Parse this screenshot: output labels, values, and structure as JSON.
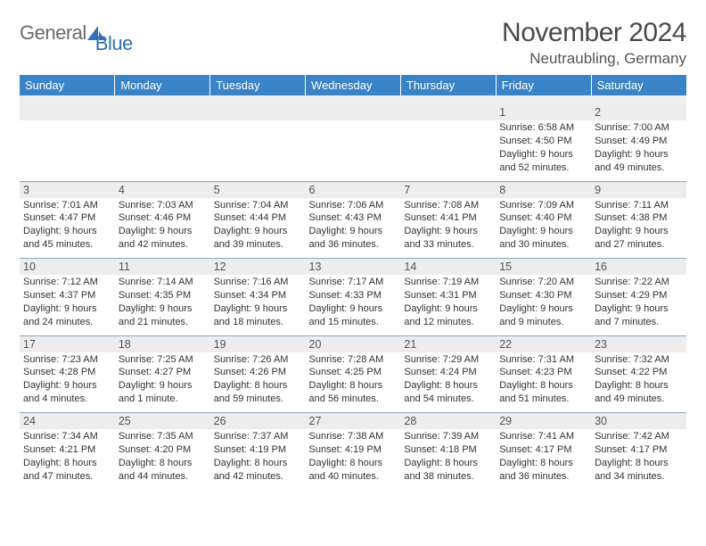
{
  "logo": {
    "general": "General",
    "blue": "Blue"
  },
  "title": {
    "month_year": "November 2024",
    "location": "Neutraubling, Germany"
  },
  "colors": {
    "header_bg": "#3b83c7",
    "header_text": "#ffffff",
    "daynum_bg": "#ededed",
    "border": "#8aa6c2",
    "logo_gray": "#6a6a6a",
    "logo_blue": "#2f6fb2"
  },
  "weekdays": [
    "Sunday",
    "Monday",
    "Tuesday",
    "Wednesday",
    "Thursday",
    "Friday",
    "Saturday"
  ],
  "weeks": [
    [
      null,
      null,
      null,
      null,
      null,
      {
        "n": "1",
        "sr": "6:58 AM",
        "ss": "4:50 PM",
        "dl": "9 hours and 52 minutes."
      },
      {
        "n": "2",
        "sr": "7:00 AM",
        "ss": "4:49 PM",
        "dl": "9 hours and 49 minutes."
      }
    ],
    [
      {
        "n": "3",
        "sr": "7:01 AM",
        "ss": "4:47 PM",
        "dl": "9 hours and 45 minutes."
      },
      {
        "n": "4",
        "sr": "7:03 AM",
        "ss": "4:46 PM",
        "dl": "9 hours and 42 minutes."
      },
      {
        "n": "5",
        "sr": "7:04 AM",
        "ss": "4:44 PM",
        "dl": "9 hours and 39 minutes."
      },
      {
        "n": "6",
        "sr": "7:06 AM",
        "ss": "4:43 PM",
        "dl": "9 hours and 36 minutes."
      },
      {
        "n": "7",
        "sr": "7:08 AM",
        "ss": "4:41 PM",
        "dl": "9 hours and 33 minutes."
      },
      {
        "n": "8",
        "sr": "7:09 AM",
        "ss": "4:40 PM",
        "dl": "9 hours and 30 minutes."
      },
      {
        "n": "9",
        "sr": "7:11 AM",
        "ss": "4:38 PM",
        "dl": "9 hours and 27 minutes."
      }
    ],
    [
      {
        "n": "10",
        "sr": "7:12 AM",
        "ss": "4:37 PM",
        "dl": "9 hours and 24 minutes."
      },
      {
        "n": "11",
        "sr": "7:14 AM",
        "ss": "4:35 PM",
        "dl": "9 hours and 21 minutes."
      },
      {
        "n": "12",
        "sr": "7:16 AM",
        "ss": "4:34 PM",
        "dl": "9 hours and 18 minutes."
      },
      {
        "n": "13",
        "sr": "7:17 AM",
        "ss": "4:33 PM",
        "dl": "9 hours and 15 minutes."
      },
      {
        "n": "14",
        "sr": "7:19 AM",
        "ss": "4:31 PM",
        "dl": "9 hours and 12 minutes."
      },
      {
        "n": "15",
        "sr": "7:20 AM",
        "ss": "4:30 PM",
        "dl": "9 hours and 9 minutes."
      },
      {
        "n": "16",
        "sr": "7:22 AM",
        "ss": "4:29 PM",
        "dl": "9 hours and 7 minutes."
      }
    ],
    [
      {
        "n": "17",
        "sr": "7:23 AM",
        "ss": "4:28 PM",
        "dl": "9 hours and 4 minutes."
      },
      {
        "n": "18",
        "sr": "7:25 AM",
        "ss": "4:27 PM",
        "dl": "9 hours and 1 minute."
      },
      {
        "n": "19",
        "sr": "7:26 AM",
        "ss": "4:26 PM",
        "dl": "8 hours and 59 minutes."
      },
      {
        "n": "20",
        "sr": "7:28 AM",
        "ss": "4:25 PM",
        "dl": "8 hours and 56 minutes."
      },
      {
        "n": "21",
        "sr": "7:29 AM",
        "ss": "4:24 PM",
        "dl": "8 hours and 54 minutes."
      },
      {
        "n": "22",
        "sr": "7:31 AM",
        "ss": "4:23 PM",
        "dl": "8 hours and 51 minutes."
      },
      {
        "n": "23",
        "sr": "7:32 AM",
        "ss": "4:22 PM",
        "dl": "8 hours and 49 minutes."
      }
    ],
    [
      {
        "n": "24",
        "sr": "7:34 AM",
        "ss": "4:21 PM",
        "dl": "8 hours and 47 minutes."
      },
      {
        "n": "25",
        "sr": "7:35 AM",
        "ss": "4:20 PM",
        "dl": "8 hours and 44 minutes."
      },
      {
        "n": "26",
        "sr": "7:37 AM",
        "ss": "4:19 PM",
        "dl": "8 hours and 42 minutes."
      },
      {
        "n": "27",
        "sr": "7:38 AM",
        "ss": "4:19 PM",
        "dl": "8 hours and 40 minutes."
      },
      {
        "n": "28",
        "sr": "7:39 AM",
        "ss": "4:18 PM",
        "dl": "8 hours and 38 minutes."
      },
      {
        "n": "29",
        "sr": "7:41 AM",
        "ss": "4:17 PM",
        "dl": "8 hours and 36 minutes."
      },
      {
        "n": "30",
        "sr": "7:42 AM",
        "ss": "4:17 PM",
        "dl": "8 hours and 34 minutes."
      }
    ]
  ],
  "labels": {
    "sunrise": "Sunrise: ",
    "sunset": "Sunset: ",
    "daylight": "Daylight: "
  }
}
